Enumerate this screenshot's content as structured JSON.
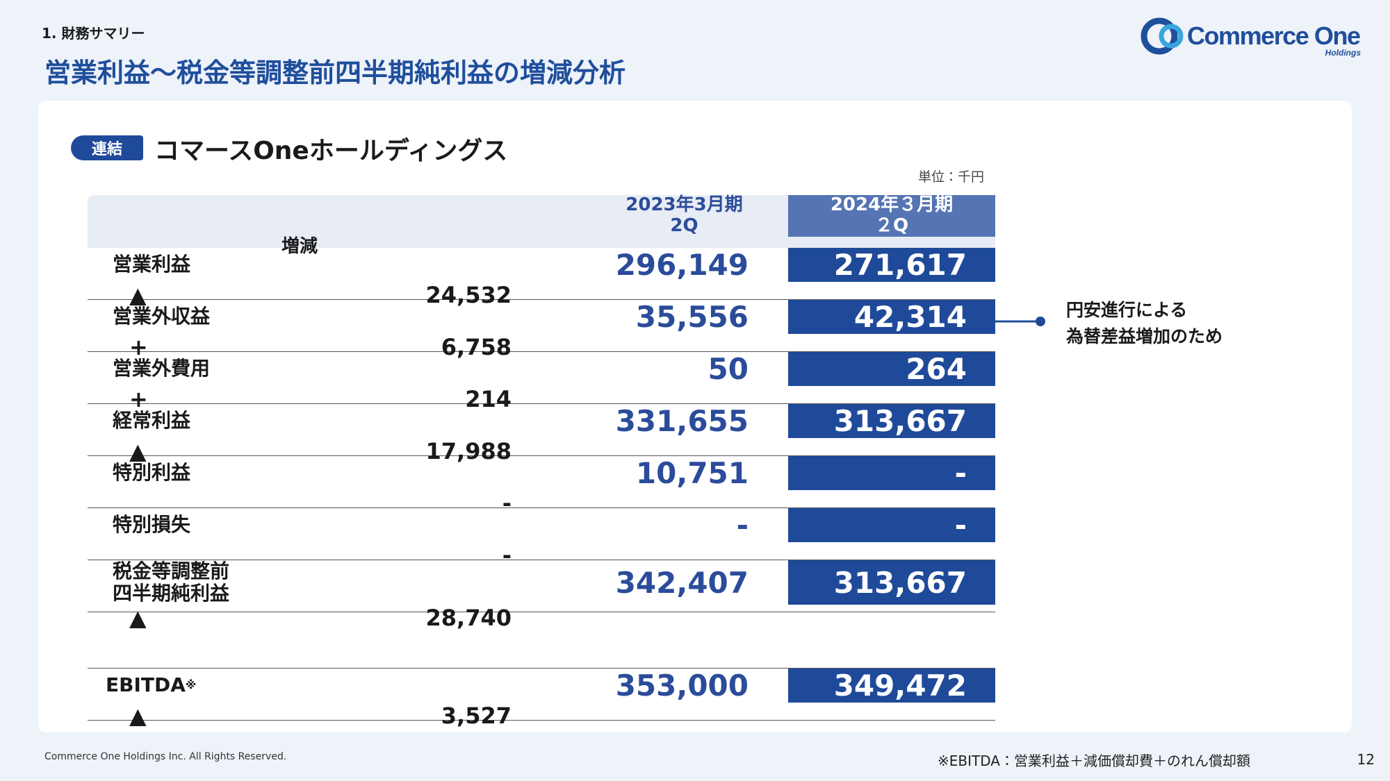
{
  "header": {
    "section": "1. 財務サマリー",
    "title": "営業利益～税金等調整前四半期純利益の増減分析",
    "logo": {
      "name": "Commerce One",
      "sub": "Holdings"
    }
  },
  "card": {
    "tag": "連結",
    "heading": "コマースOneホールディングス",
    "unit": "単位：千円"
  },
  "table": {
    "headers": [
      "2023年3月期\n2Q",
      "2024年３月期\n２Q",
      "増減"
    ],
    "rows": [
      {
        "label": "営業利益",
        "prev": "296,149",
        "curr": "271,617",
        "change": {
          "sign": "▲",
          "value": "24,532"
        }
      },
      {
        "label": "営業外収益",
        "prev": "35,556",
        "curr": "42,314",
        "change": {
          "sign": "+",
          "value": "6,758"
        }
      },
      {
        "label": "営業外費用",
        "prev": "50",
        "curr": "264",
        "change": {
          "sign": "+",
          "value": "214"
        }
      },
      {
        "label": "経常利益",
        "prev": "331,655",
        "curr": "313,667",
        "change": {
          "sign": "▲",
          "value": "17,988"
        }
      },
      {
        "label": "特別利益",
        "prev": "10,751",
        "curr": "-",
        "change": {
          "value": "-"
        }
      },
      {
        "label": "特別損失",
        "prev": "-",
        "curr": "-",
        "change": {
          "value": "-"
        }
      },
      {
        "label": "税金等調整前\n四半期純利益",
        "prev": "342,407",
        "curr": "313,667",
        "change": {
          "sign": "▲",
          "value": "28,740"
        }
      }
    ],
    "ebitda": {
      "label": "EBITDA",
      "mark": "※",
      "prev": "353,000",
      "curr": "349,472",
      "change": {
        "sign": "▲",
        "value": "3,527"
      }
    }
  },
  "annotation": "円安進行による\n為替差益増加のため",
  "footer": {
    "copyright": "Commerce One Holdings Inc. All Rights Reserved.",
    "note": "※EBITDA：営業利益＋減価償却費＋のれん償却額",
    "page": "12"
  }
}
